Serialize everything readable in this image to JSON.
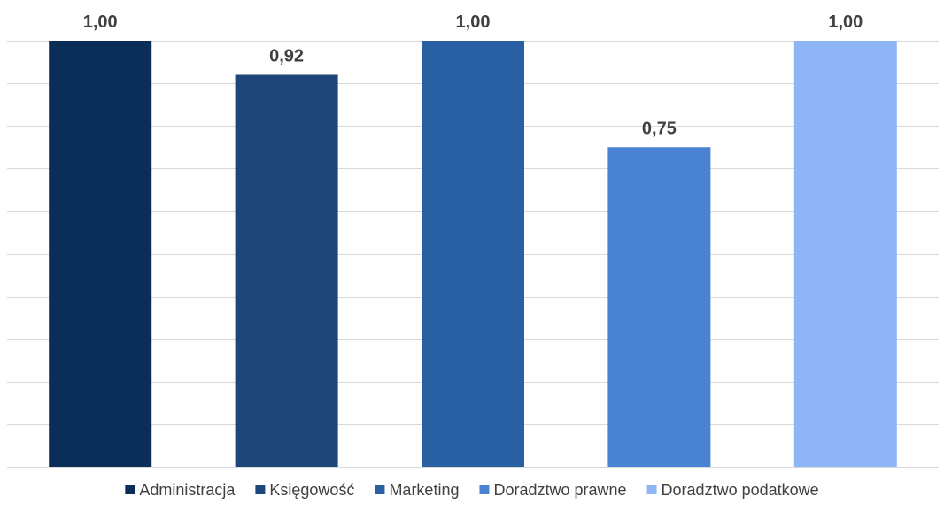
{
  "chart_data": {
    "type": "bar",
    "categories": [
      "Administracja",
      "Księgowość",
      "Marketing",
      "Doradztwo prawne",
      "Doradztwo podatkowe"
    ],
    "values": [
      1.0,
      0.92,
      1.0,
      0.75,
      1.0
    ],
    "data_labels": [
      "1,00",
      "0,92",
      "1,00",
      "0,75",
      "1,00"
    ],
    "colors": [
      "#0b2e59",
      "#1f4678",
      "#2860a3",
      "#4a83d2",
      "#8fb5f6"
    ],
    "ylim": [
      0,
      1
    ],
    "grid": true,
    "legend_position": "bottom",
    "title": "",
    "xlabel": "",
    "ylabel": ""
  }
}
